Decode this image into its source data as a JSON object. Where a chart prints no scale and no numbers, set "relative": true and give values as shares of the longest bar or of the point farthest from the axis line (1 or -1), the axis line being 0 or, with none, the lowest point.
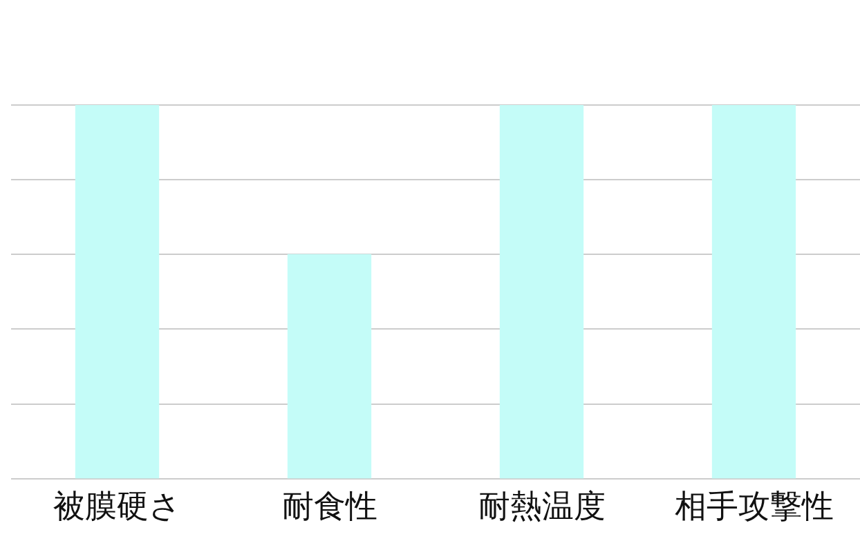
{
  "chart_data": {
    "type": "bar",
    "relative": true,
    "categories": [
      "被膜硬さ",
      "耐食性",
      "耐熱温度",
      "相手攻撃性"
    ],
    "values": [
      1,
      0.6,
      1,
      1
    ],
    "color": "#c4fcf8",
    "grid": "y",
    "tick_labels": "x",
    "legend": false
  }
}
